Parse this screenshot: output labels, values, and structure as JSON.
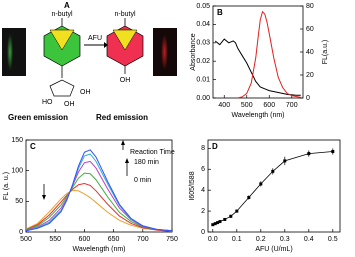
{
  "panel_a": {
    "letter": "A",
    "substituent_left": "n-butyl",
    "substituent_right": "n-butyl",
    "enzyme": "AFU",
    "left_caption": "Green emission",
    "right_caption": "Red emission",
    "sugar_oh_1": "OH",
    "sugar_oh_2": "HO",
    "sugar_oh_3": "OH",
    "phenol": "OH"
  },
  "chart_data": [
    {
      "type": "line",
      "panel": "B",
      "xlabel": "Wavelength (nm)",
      "ylabel": "Absorbance",
      "y2label": "FL(a.u.)",
      "xlim": [
        350,
        750
      ],
      "xticks": [
        400,
        500,
        600,
        700
      ],
      "ylim": [
        0,
        0.05
      ],
      "yticks": [
        {
          "value": 0,
          "label": "0.00"
        },
        {
          "value": 0.01,
          "label": "0.01"
        },
        {
          "value": 0.02,
          "label": "0.02"
        },
        {
          "value": 0.03,
          "label": "0.03"
        },
        {
          "value": 0.04,
          "label": "0.04"
        },
        {
          "value": 0.05,
          "label": "0.05"
        }
      ],
      "y2lim": [
        0,
        80
      ],
      "y2ticks": [
        0,
        20,
        40,
        60,
        80
      ],
      "series": [
        {
          "color": "#000000",
          "x": [
            360,
            380,
            400,
            420,
            440,
            450,
            460,
            480,
            500,
            520,
            540,
            560,
            580,
            600,
            640,
            680,
            720,
            740
          ],
          "values": [
            0.031,
            0.029,
            0.032,
            0.03,
            0.031,
            0.03,
            0.027,
            0.023,
            0.019,
            0.014,
            0.009,
            0.006,
            0.005,
            0.004,
            0.003,
            0.002,
            0.0015,
            0.0015
          ]
        },
        {
          "color": "#e02020",
          "axis": "y2",
          "x": [
            460,
            480,
            500,
            520,
            540,
            550,
            560,
            570,
            580,
            590,
            600,
            620,
            640,
            660,
            680,
            700,
            740
          ],
          "values": [
            0,
            1,
            4,
            13,
            35,
            52,
            68,
            75,
            73,
            66,
            56,
            35,
            18,
            9,
            4,
            2,
            0.5
          ]
        }
      ]
    },
    {
      "type": "line",
      "panel": "C",
      "xlabel": "Wavelength (nm)",
      "ylabel": "FL (a. u.)",
      "annotations": [
        "Reaction Time",
        "180 min",
        "0 min"
      ],
      "xlim": [
        500,
        750
      ],
      "xticks": [
        500,
        550,
        600,
        650,
        700,
        750
      ],
      "ylim": [
        0,
        150
      ],
      "yticks": [
        0,
        50,
        100,
        150
      ],
      "x": [
        500,
        520,
        540,
        560,
        570,
        580,
        590,
        600,
        610,
        620,
        640,
        660,
        680,
        700,
        725,
        750
      ],
      "series": [
        {
          "color": "#f0a030",
          "values": [
            5,
            14,
            33,
            54,
            63,
            68,
            67,
            62,
            56,
            48,
            32,
            19,
            11,
            6,
            3,
            1
          ]
        },
        {
          "color": "#e03030",
          "values": [
            4,
            12,
            28,
            49,
            60,
            70,
            77,
            79,
            76,
            67,
            45,
            26,
            14,
            7,
            3,
            1
          ]
        },
        {
          "color": "#40b040",
          "values": [
            4,
            10,
            24,
            44,
            58,
            73,
            88,
            96,
            95,
            85,
            57,
            32,
            17,
            8,
            4,
            2
          ]
        },
        {
          "color": "#c040c0",
          "values": [
            3,
            8,
            19,
            39,
            55,
            76,
            98,
            113,
            115,
            104,
            70,
            39,
            20,
            9,
            4,
            2
          ]
        },
        {
          "color": "#30b0d0",
          "values": [
            2,
            7,
            16,
            35,
            53,
            77,
            104,
            124,
            127,
            115,
            78,
            43,
            21,
            10,
            4,
            2
          ]
        },
        {
          "color": "#3050ff",
          "values": [
            2,
            6,
            14,
            33,
            52,
            78,
            108,
            130,
            134,
            122,
            82,
            45,
            22,
            10,
            4,
            2
          ]
        }
      ]
    },
    {
      "type": "scatter",
      "panel": "D",
      "xlabel": "AFU (U/mL)",
      "ylabel": "I605/I588",
      "xlim": [
        -0.02,
        0.53
      ],
      "xticks": [
        {
          "value": 0,
          "label": "0.0"
        },
        0.1,
        0.2,
        0.3,
        0.4,
        0.5
      ],
      "ylim": [
        0,
        8.8
      ],
      "yticks": [
        0,
        2,
        4,
        6,
        8
      ],
      "series": [
        {
          "color": "#000000",
          "x": [
            0,
            0.01,
            0.02,
            0.03,
            0.05,
            0.075,
            0.1,
            0.15,
            0.2,
            0.25,
            0.3,
            0.4,
            0.5
          ],
          "values": [
            0.7,
            0.8,
            0.9,
            1.0,
            1.2,
            1.5,
            2.0,
            3.3,
            4.6,
            5.8,
            6.8,
            7.5,
            7.7
          ],
          "errors": [
            0.1,
            0.1,
            0.1,
            0.1,
            0.1,
            0.15,
            0.15,
            0.2,
            0.25,
            0.3,
            0.4,
            0.3,
            0.3
          ]
        }
      ]
    }
  ]
}
